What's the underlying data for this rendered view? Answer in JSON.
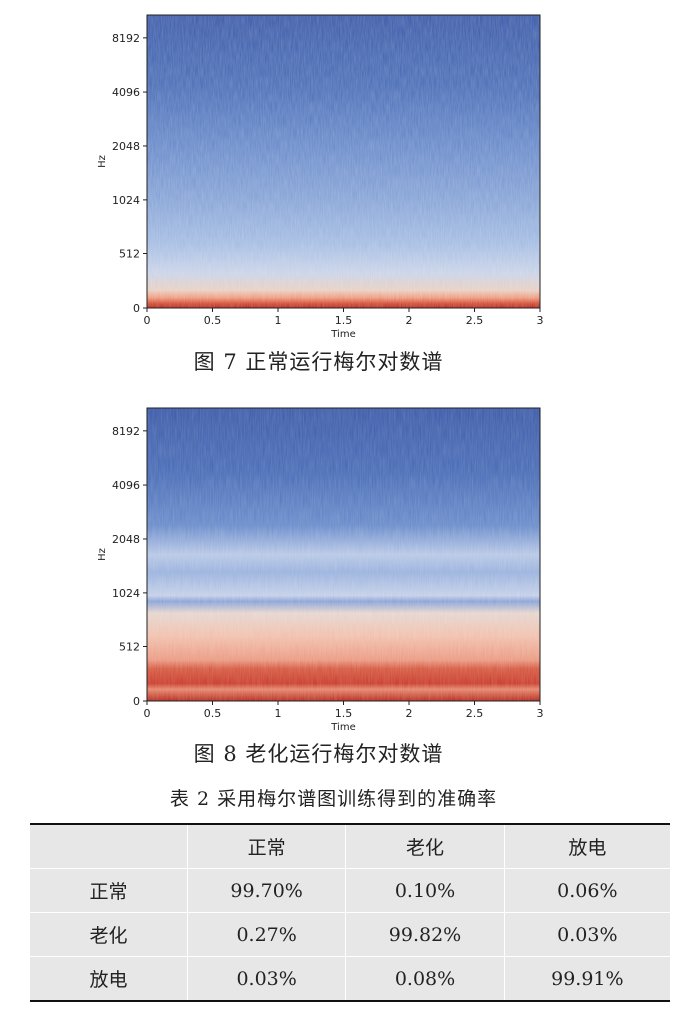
{
  "figures": [
    {
      "caption": "图 7   正常运行梅尔对数谱",
      "chart_data": {
        "type": "heatmap",
        "title": "",
        "xlabel": "Time",
        "ylabel": "Hz",
        "x_ticks": [
          "0",
          "0.5",
          "1",
          "1.5",
          "2",
          "2.5",
          "3"
        ],
        "y_ticks": [
          "0",
          "512",
          "1024",
          "2048",
          "4096",
          "8192"
        ],
        "xlim": [
          0,
          3
        ],
        "y_scale": "mel",
        "colormap": "coolwarm",
        "colors": {
          "low": "#3f5fae",
          "mid": "#b9c9e6",
          "high": "#c8392b"
        }
      }
    },
    {
      "caption": "图 8   老化运行梅尔对数谱",
      "chart_data": {
        "type": "heatmap",
        "title": "",
        "xlabel": "Time",
        "ylabel": "Hz",
        "x_ticks": [
          "0",
          "0.5",
          "1",
          "1.5",
          "2",
          "2.5",
          "3"
        ],
        "y_ticks": [
          "0",
          "512",
          "1024",
          "2048",
          "4096",
          "8192"
        ],
        "xlim": [
          0,
          3
        ],
        "y_scale": "mel",
        "colormap": "coolwarm",
        "colors": {
          "low": "#3f5fae",
          "mid": "#b9c9e6",
          "high": "#c8392b"
        }
      }
    }
  ],
  "table": {
    "title": "表 2   采用梅尔谱图训练得到的准确率",
    "headers": [
      "",
      "正常",
      "老化",
      "放电"
    ],
    "rows": [
      [
        "正常",
        "99.70%",
        "0.10%",
        "0.06%"
      ],
      [
        "老化",
        "0.27%",
        "99.82%",
        "0.03%"
      ],
      [
        "放电",
        "0.03%",
        "0.08%",
        "99.91%"
      ]
    ]
  }
}
